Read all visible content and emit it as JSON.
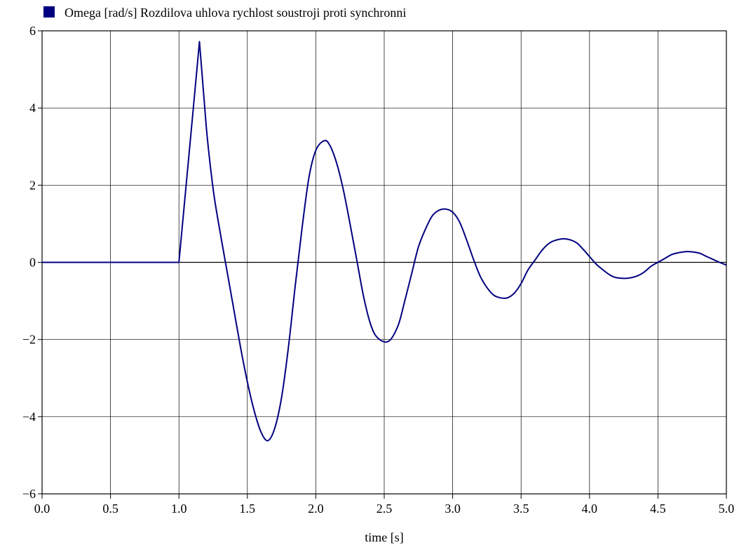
{
  "chart_data": {
    "type": "line",
    "xlabel": "time [s]",
    "ylabel": "",
    "xlim": [
      0,
      5
    ],
    "ylim": [
      -6,
      6
    ],
    "xticks": [
      0,
      0.5,
      1,
      1.5,
      2,
      2.5,
      3,
      3.5,
      4,
      4.5,
      5
    ],
    "xtick_labels": [
      "0.0",
      "0.5",
      "1.0",
      "1.5",
      "2.0",
      "2.5",
      "3.0",
      "3.5",
      "4.0",
      "4.5",
      "5.0"
    ],
    "yticks": [
      -6,
      -4,
      -2,
      0,
      2,
      4,
      6
    ],
    "ytick_labels": [
      "−6",
      "−4",
      "−2",
      "0",
      "2",
      "4",
      "6"
    ],
    "grid": true,
    "legend_position": "top-left",
    "series": [
      {
        "name": "Omega [rad/s] Rozdilova uhlova rychlost soustroji proti synchronni",
        "color": "#000080",
        "points": [
          [
            0.0,
            0.0
          ],
          [
            0.5,
            0.0
          ],
          [
            1.0,
            0.0
          ],
          [
            1.05,
            1.9
          ],
          [
            1.1,
            3.8
          ],
          [
            1.15,
            5.72
          ],
          [
            1.2,
            3.5
          ],
          [
            1.25,
            1.9
          ],
          [
            1.3,
            0.8
          ],
          [
            1.35,
            -0.2
          ],
          [
            1.4,
            -1.2
          ],
          [
            1.45,
            -2.2
          ],
          [
            1.5,
            -3.1
          ],
          [
            1.55,
            -3.85
          ],
          [
            1.6,
            -4.4
          ],
          [
            1.65,
            -4.62
          ],
          [
            1.7,
            -4.3
          ],
          [
            1.75,
            -3.5
          ],
          [
            1.8,
            -2.2
          ],
          [
            1.85,
            -0.6
          ],
          [
            1.9,
            0.9
          ],
          [
            1.95,
            2.2
          ],
          [
            2.0,
            2.9
          ],
          [
            2.06,
            3.15
          ],
          [
            2.1,
            3.05
          ],
          [
            2.15,
            2.6
          ],
          [
            2.2,
            1.9
          ],
          [
            2.25,
            1.0
          ],
          [
            2.3,
            0.05
          ],
          [
            2.35,
            -0.9
          ],
          [
            2.4,
            -1.6
          ],
          [
            2.45,
            -1.95
          ],
          [
            2.53,
            -2.05
          ],
          [
            2.6,
            -1.65
          ],
          [
            2.65,
            -1.0
          ],
          [
            2.7,
            -0.3
          ],
          [
            2.75,
            0.4
          ],
          [
            2.8,
            0.85
          ],
          [
            2.85,
            1.2
          ],
          [
            2.9,
            1.35
          ],
          [
            2.95,
            1.38
          ],
          [
            3.0,
            1.3
          ],
          [
            3.05,
            1.05
          ],
          [
            3.1,
            0.6
          ],
          [
            3.15,
            0.1
          ],
          [
            3.2,
            -0.35
          ],
          [
            3.25,
            -0.65
          ],
          [
            3.3,
            -0.85
          ],
          [
            3.35,
            -0.92
          ],
          [
            3.4,
            -0.92
          ],
          [
            3.45,
            -0.8
          ],
          [
            3.5,
            -0.55
          ],
          [
            3.55,
            -0.2
          ],
          [
            3.6,
            0.05
          ],
          [
            3.65,
            0.3
          ],
          [
            3.7,
            0.48
          ],
          [
            3.75,
            0.57
          ],
          [
            3.82,
            0.61
          ],
          [
            3.9,
            0.52
          ],
          [
            3.95,
            0.35
          ],
          [
            4.0,
            0.15
          ],
          [
            4.05,
            -0.05
          ],
          [
            4.1,
            -0.2
          ],
          [
            4.15,
            -0.33
          ],
          [
            4.2,
            -0.4
          ],
          [
            4.28,
            -0.41
          ],
          [
            4.35,
            -0.35
          ],
          [
            4.4,
            -0.25
          ],
          [
            4.45,
            -0.1
          ],
          [
            4.5,
            0.0
          ],
          [
            4.55,
            0.1
          ],
          [
            4.6,
            0.2
          ],
          [
            4.65,
            0.25
          ],
          [
            4.72,
            0.28
          ],
          [
            4.8,
            0.24
          ],
          [
            4.85,
            0.16
          ],
          [
            4.9,
            0.08
          ],
          [
            4.95,
            0.0
          ],
          [
            5.0,
            -0.07
          ]
        ]
      }
    ]
  }
}
